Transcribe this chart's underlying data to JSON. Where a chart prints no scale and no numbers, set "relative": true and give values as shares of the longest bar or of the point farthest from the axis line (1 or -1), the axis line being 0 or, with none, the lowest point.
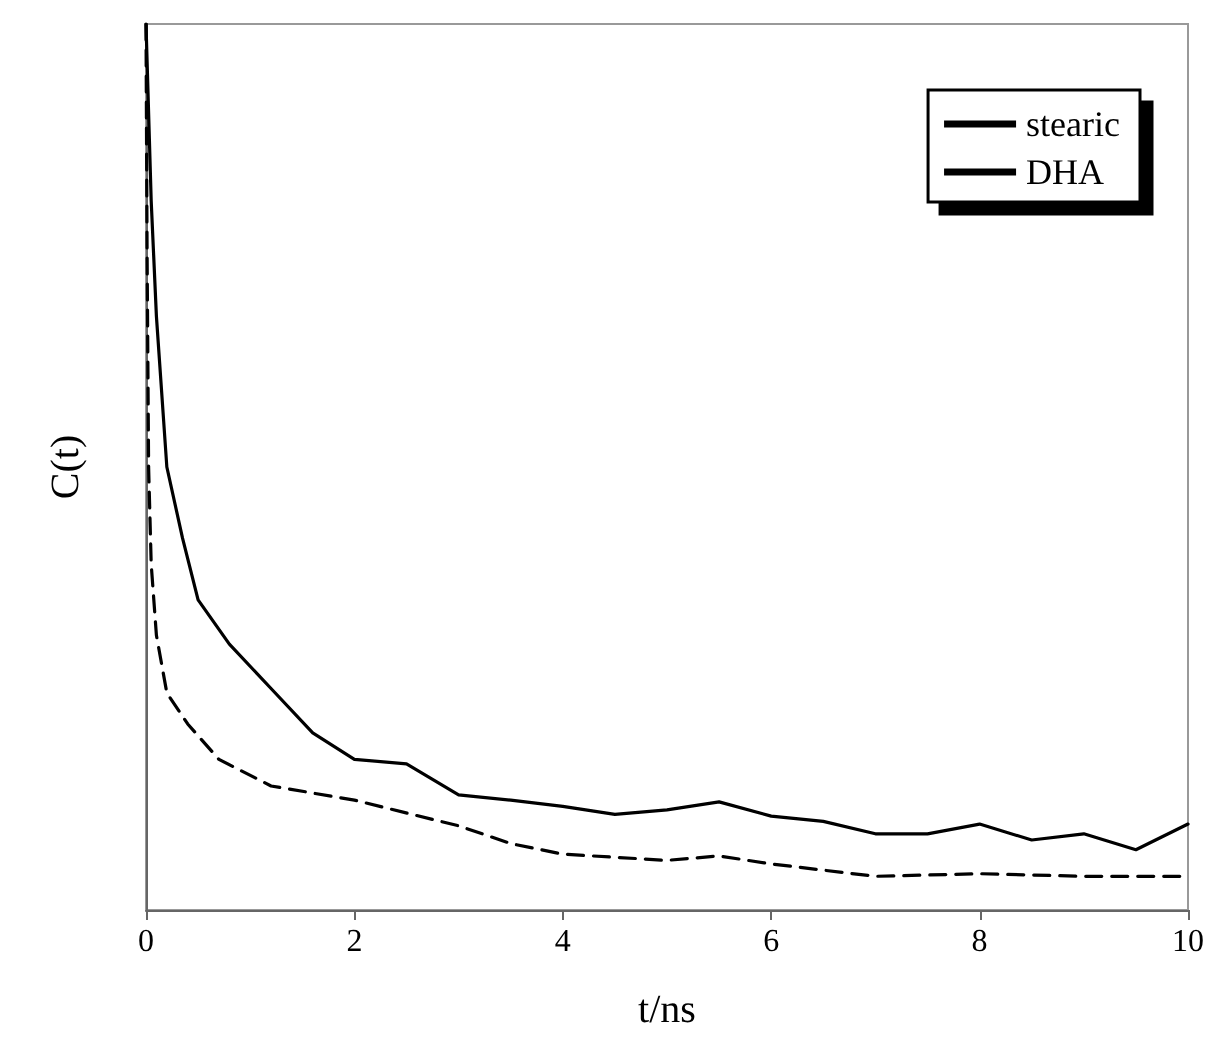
{
  "chart_data": {
    "type": "line",
    "xlabel": "t/ns",
    "ylabel": "C(t)",
    "relative": true,
    "xlim": [
      0,
      10
    ],
    "xticks": [
      0,
      2,
      4,
      6,
      8,
      10
    ],
    "legend": "top right",
    "marker": "none",
    "grid": false,
    "series": [
      {
        "name": "stearic",
        "color": "#000000",
        "line_style": "solid",
        "x": [
          0,
          0.05,
          0.1,
          0.2,
          0.35,
          0.5,
          0.8,
          1.2,
          1.6,
          2,
          2.5,
          3,
          3.5,
          4,
          4.5,
          5,
          5.5,
          6,
          6.5,
          7,
          7.5,
          8,
          8.5,
          9,
          9.5,
          10
        ],
        "values": [
          1,
          0.8,
          0.67,
          0.5,
          0.42,
          0.35,
          0.3,
          0.25,
          0.2,
          0.17,
          0.165,
          0.13,
          0.124,
          0.117,
          0.108,
          0.113,
          0.122,
          0.106,
          0.1,
          0.086,
          0.086,
          0.097,
          0.079,
          0.086,
          0.068,
          0.097
        ]
      },
      {
        "name": "DHA",
        "color": "#000000",
        "line_style": "dashed",
        "x": [
          0,
          0.01,
          0.025,
          0.05,
          0.1,
          0.2,
          0.4,
          0.7,
          1.2,
          2,
          3,
          3.5,
          4,
          5,
          5.5,
          6,
          7,
          8,
          9,
          10
        ],
        "values": [
          1,
          0.75,
          0.5,
          0.39,
          0.31,
          0.245,
          0.21,
          0.17,
          0.14,
          0.124,
          0.095,
          0.075,
          0.063,
          0.056,
          0.061,
          0.052,
          0.038,
          0.041,
          0.038,
          0.038
        ]
      }
    ]
  }
}
